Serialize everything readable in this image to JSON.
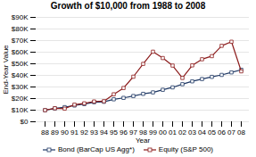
{
  "chart_data": {
    "type": "line",
    "title": "Growth of $10,000 from 1988 to 2008",
    "xlabel": "Year",
    "ylabel": "End-Year Value",
    "categories": [
      "88",
      "89",
      "90",
      "91",
      "92",
      "93",
      "94",
      "95",
      "96",
      "97",
      "98",
      "99",
      "00",
      "01",
      "02",
      "03",
      "04",
      "05",
      "06",
      "07",
      "08"
    ],
    "series": [
      {
        "name": "Bond (BarCap US Agg*)",
        "color": "#1F3864",
        "marker": "square",
        "values": [
          10000,
          11487,
          12599,
          14020,
          15242,
          16875,
          17244,
          19380,
          20599,
          22207,
          24068,
          25333,
          27565,
          29655,
          32406,
          34855,
          36839,
          38699,
          40397,
          42568,
          44820
        ]
      },
      {
        "name": "Equity (S&P 500)",
        "color": "#8B1A1A",
        "marker": "square",
        "values": [
          10000,
          11658,
          11295,
          14750,
          15897,
          17484,
          17713,
          23696,
          29112,
          38847,
          49906,
          60419,
          54936,
          48445,
          37760,
          48619,
          53905,
          56596,
          65486,
          69000,
          43490
        ]
      }
    ],
    "ylim": [
      0,
      90000
    ],
    "yticks": [
      {
        "value": 0,
        "label": "$0"
      },
      {
        "value": 10000,
        "label": "$10K"
      },
      {
        "value": 20000,
        "label": "$20K"
      },
      {
        "value": 30000,
        "label": "$30K"
      },
      {
        "value": 40000,
        "label": "$40K"
      },
      {
        "value": 50000,
        "label": "$50K"
      },
      {
        "value": 60000,
        "label": "$60K"
      },
      {
        "value": 70000,
        "label": "$70K"
      },
      {
        "value": 80000,
        "label": "$80K"
      },
      {
        "value": 90000,
        "label": "$90K"
      }
    ],
    "grid": true,
    "legend": "bottom"
  }
}
